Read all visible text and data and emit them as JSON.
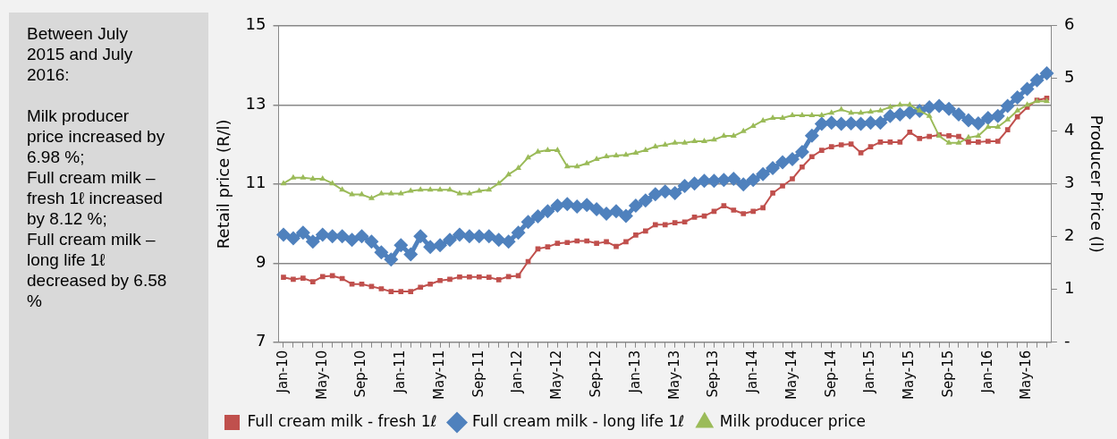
{
  "chart_data": {
    "type": "line",
    "ylabel": "Retail price (R/l)",
    "y2label": "Producer Price (l)",
    "annotations": [
      "Between July 2015 and July 2016:\n\nMilk producer price increased by 6.98 %;\nFull cream milk – fresh 1ℓ increased by 8.12 %;\nFull cream milk – long life 1ℓ decreased by 6.58 %"
    ],
    "categories": [
      "Jan-10",
      null,
      null,
      null,
      "May-10",
      null,
      null,
      null,
      "Sep-10",
      null,
      null,
      null,
      "Jan-11",
      null,
      null,
      null,
      "May-11",
      null,
      null,
      null,
      "Sep-11",
      null,
      null,
      null,
      "Jan-12",
      null,
      null,
      null,
      "May-12",
      null,
      null,
      null,
      "Sep-12",
      null,
      null,
      null,
      "Jan-13",
      null,
      null,
      null,
      "May-13",
      null,
      null,
      null,
      "Sep-13",
      null,
      null,
      null,
      "Jan-14",
      null,
      null,
      null,
      "May-14",
      null,
      null,
      null,
      "Sep-14",
      null,
      null,
      null,
      "Jan-15",
      null,
      null,
      null,
      "May-15",
      null,
      null,
      null,
      "Sep-15",
      null,
      null,
      null,
      "Jan-16",
      null,
      null,
      null,
      "May-16",
      null,
      null
    ],
    "ylim": [
      7,
      15
    ],
    "yticks": [
      7,
      9,
      11,
      13,
      15
    ],
    "y2lim": [
      0,
      6
    ],
    "y2ticks": [
      {
        "value": 0,
        "label": "-"
      },
      1,
      2,
      3,
      4,
      5,
      6
    ],
    "grid": "y",
    "legend": "bottom",
    "line_style": "solid",
    "series": [
      {
        "name": "Full cream milk - fresh 1ℓ",
        "color": "#c0504d",
        "marker": "square",
        "values": [
          8.64,
          8.59,
          8.62,
          8.53,
          8.66,
          8.68,
          8.61,
          8.47,
          8.47,
          8.41,
          8.35,
          8.28,
          8.28,
          8.28,
          8.39,
          8.47,
          8.56,
          8.59,
          8.65,
          8.65,
          8.65,
          8.64,
          8.58,
          8.66,
          8.68,
          9.04,
          9.36,
          9.41,
          9.5,
          9.52,
          9.56,
          9.56,
          9.5,
          9.54,
          9.42,
          9.54,
          9.71,
          9.81,
          9.97,
          9.97,
          10.02,
          10.04,
          10.16,
          10.19,
          10.31,
          10.45,
          10.34,
          10.25,
          10.31,
          10.4,
          10.77,
          10.95,
          11.13,
          11.43,
          11.69,
          11.85,
          11.94,
          11.99,
          12.01,
          11.79,
          11.94,
          12.06,
          12.06,
          12.06,
          12.31,
          12.15,
          12.2,
          12.24,
          12.22,
          12.2,
          12.06,
          12.06,
          12.08,
          12.08,
          12.37,
          12.7,
          12.94,
          13.12,
          13.17
        ]
      },
      {
        "name": "Full cream milk - long life 1ℓ",
        "color": "#4f81bd",
        "marker": "diamond",
        "values": [
          9.72,
          9.63,
          9.77,
          9.54,
          9.72,
          9.68,
          9.68,
          9.59,
          9.68,
          9.54,
          9.27,
          9.09,
          9.45,
          9.22,
          9.68,
          9.41,
          9.45,
          9.59,
          9.72,
          9.68,
          9.68,
          9.68,
          9.59,
          9.54,
          9.77,
          10.04,
          10.18,
          10.31,
          10.45,
          10.49,
          10.43,
          10.47,
          10.36,
          10.25,
          10.31,
          10.19,
          10.45,
          10.58,
          10.74,
          10.81,
          10.77,
          10.95,
          11.01,
          11.08,
          11.08,
          11.1,
          11.13,
          10.99,
          11.1,
          11.25,
          11.4,
          11.55,
          11.63,
          11.81,
          12.22,
          12.52,
          12.55,
          12.52,
          12.53,
          12.52,
          12.55,
          12.55,
          12.72,
          12.76,
          12.81,
          12.85,
          12.94,
          12.97,
          12.9,
          12.76,
          12.61,
          12.53,
          12.67,
          12.72,
          12.97,
          13.19,
          13.4,
          13.62,
          13.8
        ]
      },
      {
        "name": "Milk producer price",
        "color": "#9bbb59",
        "marker": "triangle",
        "axis": "y2",
        "values": [
          3.01,
          3.12,
          3.12,
          3.1,
          3.1,
          3.01,
          2.89,
          2.8,
          2.8,
          2.73,
          2.82,
          2.82,
          2.82,
          2.87,
          2.89,
          2.89,
          2.89,
          2.89,
          2.82,
          2.82,
          2.87,
          2.89,
          3.01,
          3.18,
          3.3,
          3.5,
          3.61,
          3.64,
          3.64,
          3.33,
          3.33,
          3.39,
          3.47,
          3.52,
          3.54,
          3.55,
          3.59,
          3.64,
          3.71,
          3.74,
          3.78,
          3.78,
          3.81,
          3.81,
          3.84,
          3.91,
          3.91,
          4.0,
          4.1,
          4.2,
          4.25,
          4.25,
          4.3,
          4.3,
          4.3,
          4.3,
          4.35,
          4.41,
          4.35,
          4.35,
          4.37,
          4.39,
          4.46,
          4.5,
          4.5,
          4.39,
          4.29,
          3.91,
          3.78,
          3.78,
          3.88,
          3.91,
          4.08,
          4.08,
          4.22,
          4.39,
          4.5,
          4.57,
          4.57
        ]
      }
    ]
  }
}
